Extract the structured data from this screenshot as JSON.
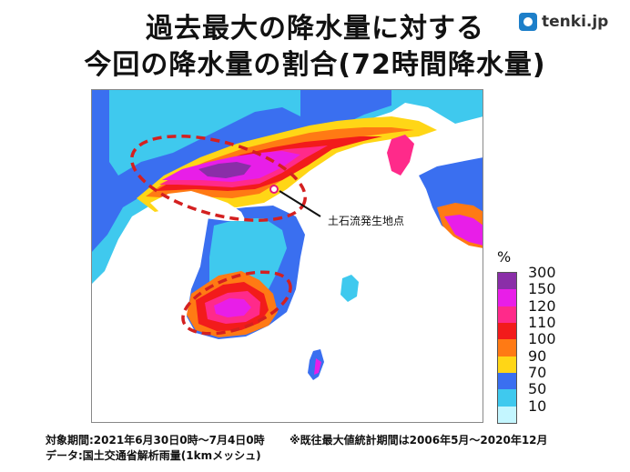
{
  "title_line1": "過去最大の降水量に対する",
  "title_line2": "今回の降水量の割合(72時間降水量)",
  "logo_text": "tenki.jp",
  "annotation": "土石流発生地点",
  "legend": {
    "unit": "%",
    "labels": [
      "300",
      "150",
      "120",
      "110",
      "100",
      "90",
      "70",
      "50",
      "10"
    ],
    "colors": [
      "#8a2ea8",
      "#e81ee8",
      "#ff2a8a",
      "#f21b1b",
      "#ff7a14",
      "#ffd616",
      "#3a6ff0",
      "#3fc9ee",
      "#c4f6ff"
    ]
  },
  "footer": {
    "period": "対象期間:2021年6月30日0時〜7月4日0時",
    "note": "※既往最大値統計期間は2006年5月〜2020年12月",
    "data": "データ:国土交通省解析雨量(1kmメッシュ)"
  },
  "colors": {
    "sea": "#ffffff",
    "highlight_ellipse": "#d42020",
    "marker": "#e8187a"
  }
}
